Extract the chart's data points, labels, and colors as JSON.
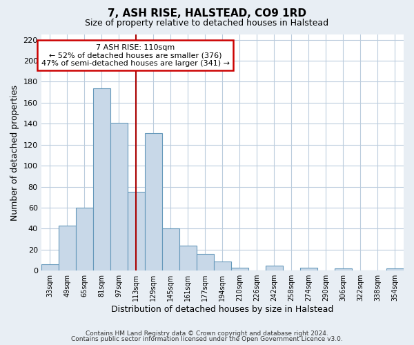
{
  "title": "7, ASH RISE, HALSTEAD, CO9 1RD",
  "subtitle": "Size of property relative to detached houses in Halstead",
  "xlabel": "Distribution of detached houses by size in Halstead",
  "ylabel": "Number of detached properties",
  "bar_color": "#c8d8e8",
  "bar_edge_color": "#6699bb",
  "bin_labels": [
    "33sqm",
    "49sqm",
    "65sqm",
    "81sqm",
    "97sqm",
    "113sqm",
    "129sqm",
    "145sqm",
    "161sqm",
    "177sqm",
    "194sqm",
    "210sqm",
    "226sqm",
    "242sqm",
    "258sqm",
    "274sqm",
    "290sqm",
    "306sqm",
    "322sqm",
    "338sqm",
    "354sqm"
  ],
  "bar_heights": [
    6,
    43,
    60,
    174,
    141,
    75,
    131,
    40,
    24,
    16,
    9,
    3,
    0,
    5,
    0,
    3,
    0,
    2,
    0,
    0,
    2
  ],
  "vline_x_index": 5,
  "vline_color": "#aa0000",
  "annotation_text": "7 ASH RISE: 110sqm\n← 52% of detached houses are smaller (376)\n47% of semi-detached houses are larger (341) →",
  "annotation_box_color": "white",
  "annotation_box_edge_color": "#cc0000",
  "ylim": [
    0,
    225
  ],
  "yticks": [
    0,
    20,
    40,
    60,
    80,
    100,
    120,
    140,
    160,
    180,
    200,
    220
  ],
  "footer_line1": "Contains HM Land Registry data © Crown copyright and database right 2024.",
  "footer_line2": "Contains public sector information licensed under the Open Government Licence v3.0.",
  "background_color": "#e8eef4",
  "plot_background_color": "white",
  "grid_color": "#bbccdd",
  "title_fontsize": 11,
  "subtitle_fontsize": 9
}
